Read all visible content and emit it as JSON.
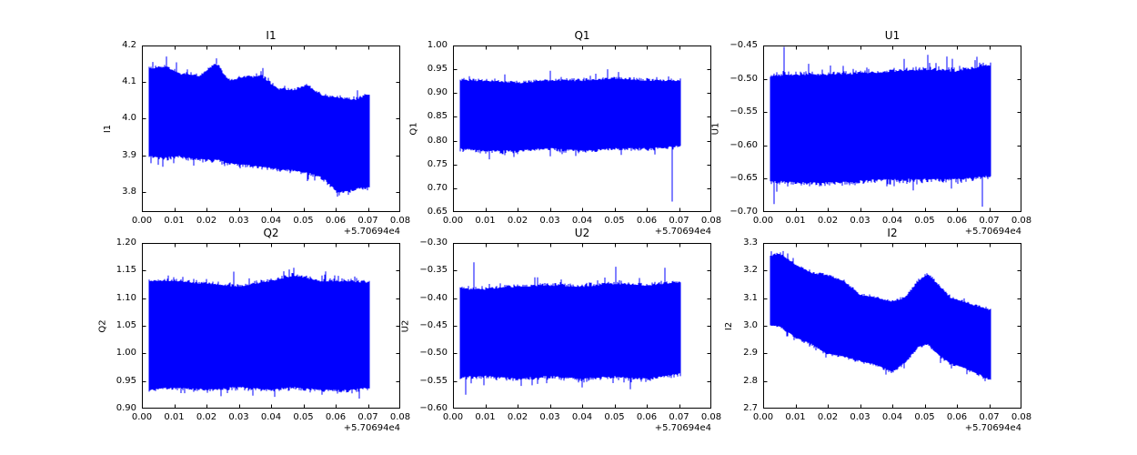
{
  "figure": {
    "background": "#ffffff",
    "frame_color": "#000000"
  },
  "chart_data": {
    "type": "line",
    "layout": "2x3-subplot-grid",
    "line_color": "#0000ff",
    "grid": "off",
    "legend": "none",
    "x_axis": {
      "lim": [
        0.0,
        0.08
      ],
      "tick_vals": [
        0.0,
        0.01,
        0.02,
        0.03,
        0.04,
        0.05,
        0.06,
        0.07,
        0.08
      ],
      "tick_labels": [
        "0.00",
        "0.01",
        "0.02",
        "0.03",
        "0.04",
        "0.05",
        "0.06",
        "0.07",
        "0.08"
      ],
      "offset_label": "+5.70694e4",
      "data_range": [
        0.002,
        0.0705
      ]
    },
    "plots": [
      {
        "title": "I1",
        "ylabel": "I1",
        "ylim": [
          3.745,
          4.2
        ],
        "ytick_vals": [
          3.8,
          3.9,
          4.0,
          4.1,
          4.2
        ],
        "ytick_labels": [
          "3.8",
          "3.9",
          "4.0",
          "4.1",
          "4.2"
        ],
        "band": [
          [
            0.002,
            3.9,
            4.135
          ],
          [
            0.007,
            3.895,
            4.14
          ],
          [
            0.012,
            3.9,
            4.12
          ],
          [
            0.018,
            3.89,
            4.115
          ],
          [
            0.023,
            3.89,
            4.15
          ],
          [
            0.027,
            3.88,
            4.1
          ],
          [
            0.032,
            3.875,
            4.11
          ],
          [
            0.037,
            3.87,
            4.115
          ],
          [
            0.042,
            3.865,
            4.08
          ],
          [
            0.047,
            3.86,
            4.075
          ],
          [
            0.051,
            3.855,
            4.09
          ],
          [
            0.056,
            3.84,
            4.06
          ],
          [
            0.061,
            3.8,
            4.055
          ],
          [
            0.066,
            3.81,
            4.05
          ],
          [
            0.0705,
            3.815,
            4.065
          ]
        ],
        "edge_noise": 0.012,
        "spikes": [
          [
            0.0075,
            4.17
          ],
          [
            0.023,
            4.165
          ],
          [
            0.0035,
            4.155
          ],
          [
            0.0605,
            3.787
          ],
          [
            0.064,
            3.792
          ]
        ]
      },
      {
        "title": "Q1",
        "ylabel": "Q1",
        "ylim": [
          0.65,
          1.0
        ],
        "ytick_vals": [
          0.65,
          0.7,
          0.75,
          0.8,
          0.85,
          0.9,
          0.95,
          1.0
        ],
        "ytick_labels": [
          "0.65",
          "0.70",
          "0.75",
          "0.80",
          "0.85",
          "0.90",
          "0.95",
          "1.00"
        ],
        "band": [
          [
            0.002,
            0.785,
            0.925
          ],
          [
            0.01,
            0.78,
            0.925
          ],
          [
            0.02,
            0.78,
            0.92
          ],
          [
            0.03,
            0.785,
            0.925
          ],
          [
            0.04,
            0.78,
            0.925
          ],
          [
            0.05,
            0.785,
            0.93
          ],
          [
            0.06,
            0.785,
            0.925
          ],
          [
            0.0705,
            0.79,
            0.925
          ]
        ],
        "edge_noise": 0.008,
        "spikes": [
          [
            0.068,
            0.672
          ],
          [
            0.03,
            0.947
          ],
          [
            0.048,
            0.95
          ]
        ]
      },
      {
        "title": "U1",
        "ylabel": "U1",
        "ylim": [
          -0.7,
          -0.45
        ],
        "ytick_vals": [
          -0.7,
          -0.65,
          -0.6,
          -0.55,
          -0.5,
          -0.45
        ],
        "ytick_labels": [
          "−0.70",
          "−0.65",
          "−0.60",
          "−0.55",
          "−0.50",
          "−0.45"
        ],
        "band": [
          [
            0.002,
            -0.652,
            -0.497
          ],
          [
            0.01,
            -0.655,
            -0.495
          ],
          [
            0.02,
            -0.655,
            -0.495
          ],
          [
            0.03,
            -0.652,
            -0.493
          ],
          [
            0.04,
            -0.65,
            -0.49
          ],
          [
            0.05,
            -0.65,
            -0.487
          ],
          [
            0.06,
            -0.65,
            -0.49
          ],
          [
            0.0705,
            -0.645,
            -0.48
          ]
        ],
        "edge_noise": 0.008,
        "spikes": [
          [
            0.0035,
            -0.688
          ],
          [
            0.0065,
            -0.452
          ],
          [
            0.051,
            -0.464
          ],
          [
            0.0585,
            -0.47
          ],
          [
            0.0655,
            -0.472
          ],
          [
            0.068,
            -0.692
          ]
        ]
      },
      {
        "title": "Q2",
        "ylabel": "Q2",
        "ylim": [
          0.9,
          1.2
        ],
        "ytick_vals": [
          0.9,
          0.95,
          1.0,
          1.05,
          1.1,
          1.15,
          1.2
        ],
        "ytick_labels": [
          "0.90",
          "0.95",
          "1.00",
          "1.05",
          "1.10",
          "1.15",
          "1.20"
        ],
        "band": [
          [
            0.002,
            0.935,
            1.13
          ],
          [
            0.01,
            0.94,
            1.13
          ],
          [
            0.02,
            0.935,
            1.125
          ],
          [
            0.03,
            0.94,
            1.12
          ],
          [
            0.04,
            0.935,
            1.13
          ],
          [
            0.047,
            0.94,
            1.14
          ],
          [
            0.055,
            0.935,
            1.13
          ],
          [
            0.065,
            0.935,
            1.13
          ],
          [
            0.0705,
            0.94,
            1.125
          ]
        ],
        "edge_noise": 0.008,
        "spikes": [
          [
            0.0285,
            1.148
          ],
          [
            0.047,
            1.155
          ],
          [
            0.012,
            0.928
          ],
          [
            0.033,
            0.932
          ]
        ]
      },
      {
        "title": "U2",
        "ylabel": "U2",
        "ylim": [
          -0.6,
          -0.3
        ],
        "ytick_vals": [
          -0.6,
          -0.55,
          -0.5,
          -0.45,
          -0.4,
          -0.35,
          -0.3
        ],
        "ytick_labels": [
          "−0.60",
          "−0.55",
          "−0.50",
          "−0.45",
          "−0.40",
          "−0.35",
          "−0.30"
        ],
        "band": [
          [
            0.002,
            -0.542,
            -0.385
          ],
          [
            0.01,
            -0.54,
            -0.385
          ],
          [
            0.02,
            -0.545,
            -0.38
          ],
          [
            0.03,
            -0.54,
            -0.378
          ],
          [
            0.04,
            -0.545,
            -0.38
          ],
          [
            0.05,
            -0.54,
            -0.375
          ],
          [
            0.06,
            -0.545,
            -0.378
          ],
          [
            0.0705,
            -0.535,
            -0.372
          ]
        ],
        "edge_noise": 0.008,
        "spikes": [
          [
            0.004,
            -0.575
          ],
          [
            0.0065,
            -0.335
          ],
          [
            0.0505,
            -0.343
          ],
          [
            0.055,
            -0.565
          ],
          [
            0.0655,
            -0.345
          ]
        ]
      },
      {
        "title": "I2",
        "ylabel": "I2",
        "ylim": [
          2.7,
          3.3
        ],
        "ytick_vals": [
          2.7,
          2.8,
          2.9,
          3.0,
          3.1,
          3.2,
          3.3
        ],
        "ytick_labels": [
          "2.7",
          "2.8",
          "2.9",
          "3.0",
          "3.1",
          "3.2",
          "3.3"
        ],
        "band": [
          [
            0.002,
            3.005,
            3.25
          ],
          [
            0.005,
            3.0,
            3.26
          ],
          [
            0.01,
            2.96,
            3.22
          ],
          [
            0.015,
            2.935,
            3.19
          ],
          [
            0.02,
            2.9,
            3.18
          ],
          [
            0.025,
            2.89,
            3.16
          ],
          [
            0.03,
            2.875,
            3.11
          ],
          [
            0.035,
            2.86,
            3.1
          ],
          [
            0.04,
            2.835,
            3.085
          ],
          [
            0.044,
            2.87,
            3.1
          ],
          [
            0.048,
            2.925,
            3.16
          ],
          [
            0.051,
            2.935,
            3.185
          ],
          [
            0.054,
            2.9,
            3.15
          ],
          [
            0.058,
            2.865,
            3.1
          ],
          [
            0.062,
            2.85,
            3.085
          ],
          [
            0.066,
            2.83,
            3.07
          ],
          [
            0.0705,
            2.805,
            3.055
          ]
        ],
        "edge_noise": 0.01,
        "spikes": [
          [
            0.0025,
            3.27
          ],
          [
            0.0075,
            3.262
          ],
          [
            0.0195,
            2.885
          ],
          [
            0.055,
            2.865
          ]
        ]
      }
    ]
  }
}
